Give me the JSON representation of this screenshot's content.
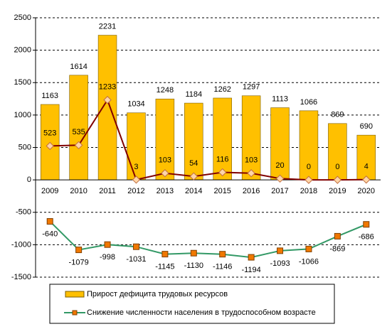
{
  "chart_data": {
    "type": "bar",
    "categories": [
      "2009",
      "2010",
      "2011",
      "2012",
      "2013",
      "2014",
      "2015",
      "2016",
      "2017",
      "2018",
      "2019",
      "2020"
    ],
    "series": [
      {
        "name": "Прирост дефицита трудовых ресурсов",
        "type": "bar",
        "color": "#ffc000",
        "values": [
          1163,
          1614,
          2231,
          1034,
          1248,
          1184,
          1262,
          1297,
          1113,
          1066,
          869,
          690
        ]
      },
      {
        "type": "line",
        "color": "#800000",
        "marker_color": "#ffd5a8",
        "values": [
          523,
          535,
          1233,
          3,
          103,
          54,
          116,
          103,
          20,
          0,
          0,
          4
        ]
      },
      {
        "name": "Снижение численности населения в трудоспособном возрасте",
        "type": "line",
        "color": "#339966",
        "marker_color": "#f07800",
        "values": [
          -640,
          -1079,
          -998,
          -1031,
          -1145,
          -1130,
          -1146,
          -1194,
          -1093,
          -1066,
          -869,
          -686
        ]
      }
    ],
    "ylim": [
      -1500,
      2500
    ],
    "yticks": [
      -1500,
      -1000,
      -500,
      0,
      500,
      1000,
      1500,
      2000,
      2500
    ],
    "grid": true
  }
}
